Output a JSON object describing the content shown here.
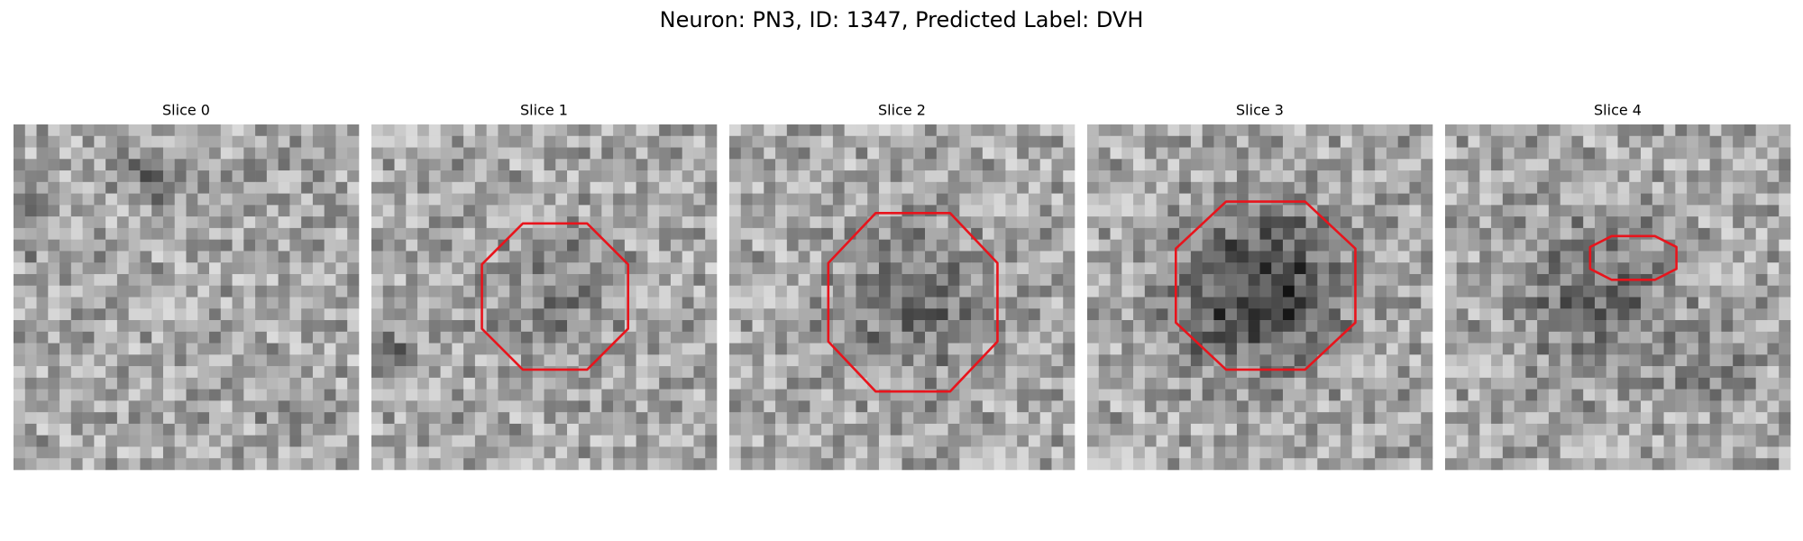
{
  "figure": {
    "title": "Neuron: PN3, ID: 1347, Predicted Label: DVH",
    "panels": [
      {
        "title": "Slice 0"
      },
      {
        "title": "Slice 1"
      },
      {
        "title": "Slice 2"
      },
      {
        "title": "Slice 3"
      },
      {
        "title": "Slice 4"
      }
    ]
  }
}
